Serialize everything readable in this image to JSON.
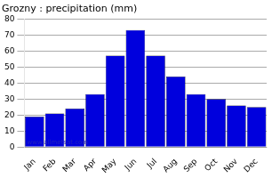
{
  "chart_data": {
    "type": "bar",
    "title": "Grozny : precipitation (mm)",
    "categories": [
      "Jan",
      "Feb",
      "Mar",
      "Apr",
      "May",
      "Jun",
      "Jul",
      "Aug",
      "Sep",
      "Oct",
      "Nov",
      "Dec"
    ],
    "values": [
      19,
      21,
      24,
      33,
      57,
      73,
      57,
      44,
      33,
      30,
      26,
      25
    ],
    "color": "#0000DD",
    "ylim": [
      0,
      80
    ],
    "yticks": [
      0,
      10,
      20,
      30,
      40,
      50,
      60,
      70,
      80
    ],
    "grid": true,
    "annotations": [
      "www.allmetsat.com"
    ]
  }
}
